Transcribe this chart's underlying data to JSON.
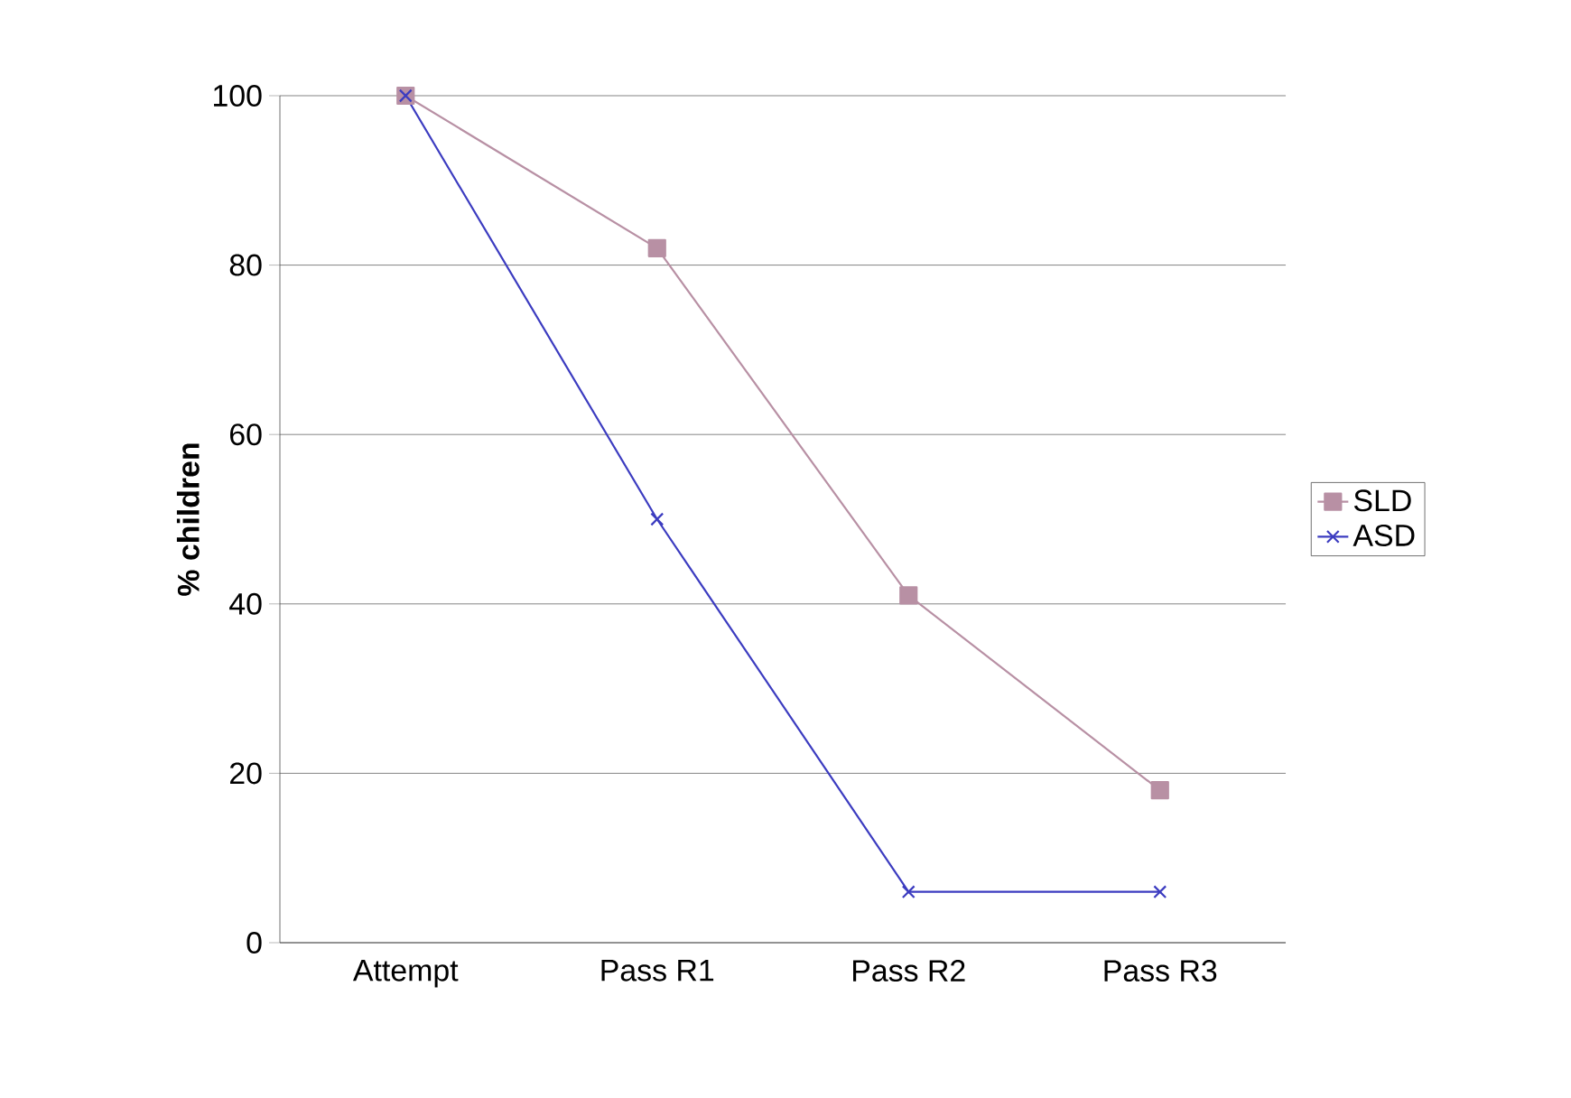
{
  "chart_data": {
    "type": "line",
    "ylabel": "% children",
    "categories": [
      "Attempt",
      "Pass R1",
      "Pass R2",
      "Pass R3"
    ],
    "series": [
      {
        "name": "SLD",
        "color": "#b890a4",
        "marker": "square",
        "values": [
          100,
          82,
          41,
          18
        ]
      },
      {
        "name": "ASD",
        "color": "#3c3cc0",
        "marker": "cross",
        "values": [
          100,
          50,
          6,
          6
        ]
      }
    ],
    "ylim": [
      0,
      100
    ],
    "yticks": [
      0,
      20,
      40,
      60,
      80,
      100
    ],
    "grid": "y",
    "legend": "right",
    "line_style": "solid"
  }
}
